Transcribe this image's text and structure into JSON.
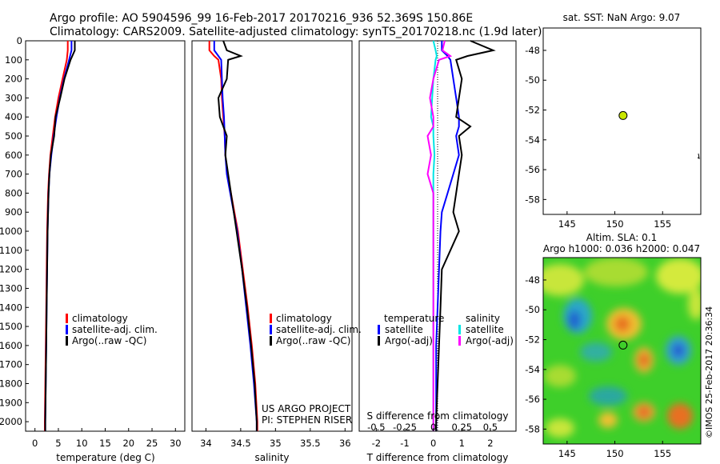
{
  "header": {
    "line1": "Argo profile: AO 5904596_99 16-Feb-2017 20170216_936 52.369S 150.86E",
    "line2": "Climatology: CARS2009. Satellite-adjusted climatology: synTS_20170218.nc (1.9d later)"
  },
  "colors": {
    "climatology": "#ff0000",
    "satellite": "#0000ff",
    "argo": "#000000",
    "salinity_satellite": "#00e5e5",
    "salinity_argo": "#ff00ff",
    "marker": "#c8e600"
  },
  "depth_axis": {
    "ticks": [
      0,
      100,
      200,
      300,
      400,
      500,
      600,
      700,
      800,
      900,
      1000,
      1100,
      1200,
      1300,
      1400,
      1500,
      1600,
      1700,
      1800,
      1900,
      2000
    ],
    "range": [
      0,
      2050
    ]
  },
  "panels": {
    "temperature": {
      "xlabel": "temperature (deg C)",
      "xticks": [
        "0",
        "5",
        "10",
        "15",
        "20",
        "25",
        "30"
      ],
      "legend": [
        "climatology",
        "satellite-adj. clim.",
        "Argo(..raw -QC)"
      ]
    },
    "salinity": {
      "xlabel": "salinity",
      "xticks": [
        "34",
        "34.5",
        "35",
        "35.5",
        "36"
      ],
      "legend": [
        "climatology",
        "satellite-adj. clim.",
        "Argo(..raw -QC)"
      ],
      "credit1": "US ARGO PROJECT",
      "credit2": "PI: STEPHEN RISER"
    },
    "difference": {
      "xlabel": "T difference from climatology",
      "s_label": "S difference from climatology",
      "xticks_t": [
        "-2",
        "-1",
        "0",
        "1",
        "2"
      ],
      "xticks_s": [
        "-0.5",
        "-0.25",
        "0",
        "0.25",
        "0.5"
      ],
      "legend_t_title": "temperature",
      "legend_s_title": "salinity",
      "legend_t": [
        "satellite",
        "Argo(-adj)"
      ],
      "legend_s": [
        "satellite",
        "Argo(-adj)"
      ]
    },
    "sst_map": {
      "title": "sat. SST: NaN Argo: 9.07",
      "xticks": [
        "145",
        "150",
        "155"
      ],
      "yticks": [
        "-48",
        "-50",
        "-52",
        "-54",
        "-56",
        "-58"
      ]
    },
    "sla_map": {
      "title1": "Altim. SLA: 0.1",
      "title2": "Argo h1000: 0.036 h2000: 0.047",
      "xticks": [
        "145",
        "150",
        "155"
      ],
      "yticks": [
        "-48",
        "-50",
        "-52",
        "-54",
        "-56",
        "-58"
      ],
      "side_label": "©IMOS 25-Feb-2017 20:36:34"
    }
  },
  "chart_data": [
    {
      "type": "line",
      "name": "temperature profile",
      "xlim": [
        -2,
        32
      ],
      "ylim": [
        2050,
        0
      ],
      "xlabel": "temperature (deg C)",
      "depth": [
        0,
        50,
        100,
        200,
        300,
        400,
        500,
        600,
        700,
        800,
        900,
        1000,
        1200,
        1400,
        1600,
        1800,
        2000,
        2050
      ],
      "series": [
        {
          "name": "climatology",
          "values": [
            7.0,
            7.0,
            6.8,
            5.9,
            5.0,
            4.3,
            3.8,
            3.3,
            3.0,
            2.8,
            2.7,
            2.6,
            2.5,
            2.4,
            2.3,
            2.2,
            2.1,
            2.1
          ]
        },
        {
          "name": "satellite-adj. clim.",
          "values": [
            7.8,
            7.8,
            7.3,
            6.2,
            5.3,
            4.6,
            4.0,
            3.5,
            3.1,
            2.9,
            2.8,
            2.7,
            2.6,
            2.5,
            2.4,
            2.3,
            2.2,
            2.2
          ]
        },
        {
          "name": "Argo(..raw -QC)",
          "values": [
            8.5,
            8.5,
            7.6,
            6.3,
            5.4,
            4.4,
            4.1,
            3.4,
            3.1,
            2.9,
            2.8,
            2.7,
            2.6,
            2.5,
            2.4,
            2.3,
            2.2,
            2.2
          ]
        }
      ]
    },
    {
      "type": "line",
      "name": "salinity profile",
      "xlim": [
        33.8,
        36.1
      ],
      "ylim": [
        2050,
        0
      ],
      "xlabel": "salinity",
      "depth": [
        0,
        50,
        80,
        100,
        200,
        300,
        400,
        500,
        600,
        700,
        800,
        900,
        1000,
        1200,
        1400,
        1600,
        1800,
        2000,
        2050
      ],
      "series": [
        {
          "name": "climatology",
          "values": [
            34.05,
            34.05,
            34.12,
            34.18,
            34.22,
            34.23,
            34.25,
            34.27,
            34.28,
            34.31,
            34.36,
            34.41,
            34.46,
            34.53,
            34.6,
            34.66,
            34.71,
            34.74,
            34.74
          ]
        },
        {
          "name": "satellite-adj. clim.",
          "values": [
            34.12,
            34.12,
            34.18,
            34.22,
            34.23,
            34.24,
            34.26,
            34.27,
            34.28,
            34.3,
            34.35,
            34.4,
            34.45,
            34.52,
            34.58,
            34.64,
            34.69,
            34.73,
            34.73
          ]
        },
        {
          "name": "Argo(..raw -QC)",
          "values": [
            34.25,
            34.3,
            34.5,
            34.32,
            34.3,
            34.18,
            34.2,
            34.3,
            34.28,
            34.32,
            34.36,
            34.4,
            34.44,
            34.52,
            34.59,
            34.65,
            34.7,
            34.73,
            34.73
          ]
        }
      ]
    },
    {
      "type": "line",
      "name": "difference from climatology",
      "xlim_t": [
        -2.6,
        2.9
      ],
      "xlim_s": [
        -0.65,
        0.725
      ],
      "ylim": [
        2050,
        0
      ],
      "depth": [
        0,
        50,
        80,
        100,
        200,
        300,
        400,
        450,
        500,
        600,
        700,
        800,
        900,
        1000,
        1200,
        1400,
        1600,
        1800,
        2000,
        2050
      ],
      "series": [
        {
          "name": "temperature satellite",
          "axis": "T",
          "values": [
            0.3,
            0.3,
            0.5,
            0.6,
            0.7,
            0.8,
            0.9,
            0.9,
            0.8,
            0.9,
            0.7,
            0.5,
            0.3,
            0.25,
            0.2,
            0.15,
            0.1,
            0.1,
            0.1,
            0.1
          ]
        },
        {
          "name": "temperature Argo(-adj)",
          "axis": "T",
          "values": [
            1.3,
            2.1,
            1.2,
            0.8,
            1.0,
            0.9,
            0.8,
            1.3,
            0.9,
            1.0,
            0.9,
            0.8,
            0.7,
            0.9,
            0.3,
            0.25,
            0.2,
            0.15,
            0.1,
            0.1
          ]
        },
        {
          "name": "salinity satellite",
          "axis": "S",
          "values": [
            0.0,
            0.02,
            0.03,
            0.02,
            0.0,
            -0.01,
            -0.02,
            0.0,
            0.0,
            0.01,
            0.0,
            0.0,
            0.0,
            0.0,
            0.0,
            0.0,
            0.0,
            0.0,
            0.0,
            0.0
          ]
        },
        {
          "name": "salinity Argo(-adj)",
          "axis": "S",
          "values": [
            0.1,
            0.08,
            0.15,
            0.05,
            0.0,
            -0.03,
            0.0,
            0.0,
            -0.05,
            -0.02,
            -0.05,
            0.0,
            0.0,
            0.0,
            0.0,
            0.0,
            0.0,
            0.0,
            0.0,
            0.0
          ]
        }
      ]
    },
    {
      "type": "scatter",
      "name": "SST map",
      "xlim": [
        142.5,
        159
      ],
      "ylim": [
        -59,
        -46.5
      ],
      "points": [
        {
          "lon": 150.86,
          "lat": -52.369
        }
      ]
    },
    {
      "type": "heatmap",
      "name": "SLA map",
      "xlim": [
        142.5,
        159
      ],
      "ylim": [
        -59,
        -46.5
      ],
      "points": [
        {
          "lon": 150.86,
          "lat": -52.369
        }
      ]
    }
  ]
}
